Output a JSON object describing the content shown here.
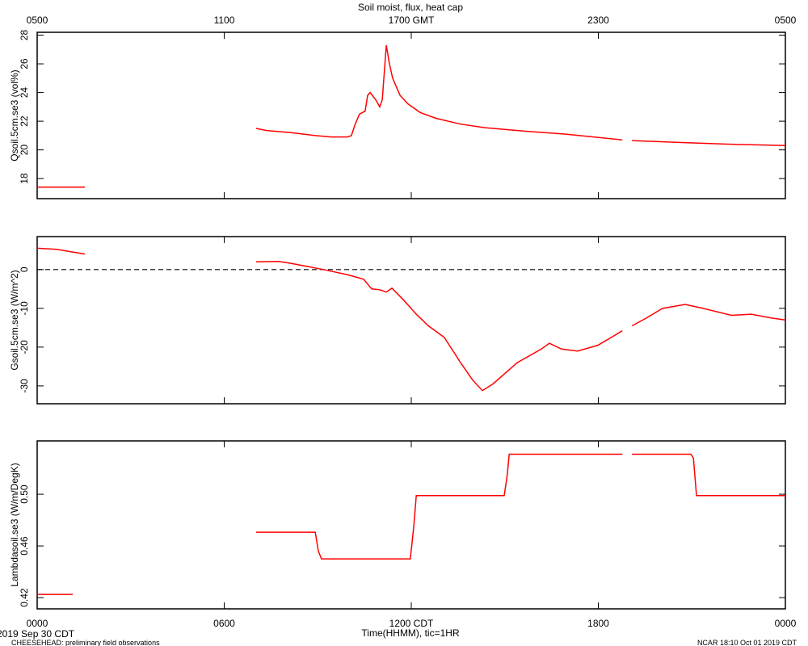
{
  "footer": {
    "date": "2019 Sep 30 CDT",
    "project": "CHEESEHEAD: preliminary field observations",
    "stamp": "NCAR 18:10 Oct 01 2019 CDT"
  },
  "chart_data": [
    {
      "type": "line",
      "title": "Soil moist, flux, heat cap",
      "ylabel": "Qsoil.5cm.se3 (vol%)",
      "xlim": [
        0,
        24
      ],
      "ylim": [
        16.6,
        28.2
      ],
      "yticks": [
        18,
        20,
        22,
        24,
        26,
        28
      ],
      "x2ticks": [
        {
          "value": 0,
          "label": "0500"
        },
        {
          "value": 6,
          "label": "1100"
        },
        {
          "value": 12,
          "label": "1700 GMT"
        },
        {
          "value": 18,
          "label": "2300"
        },
        {
          "value": 24,
          "label": "0500"
        }
      ],
      "x": [
        0,
        1.53,
        1.6,
        7.02,
        7.36,
        8.14,
        8.92,
        9.43,
        9.95,
        10.08,
        10.2,
        10.34,
        10.52,
        10.6,
        10.68,
        10.86,
        10.99,
        11.07,
        11.2,
        11.3,
        11.4,
        11.64,
        11.9,
        12.29,
        12.8,
        13.58,
        14.36,
        15.66,
        16.95,
        18.77,
        18.9,
        19.08,
        20.84,
        22.14,
        24
      ],
      "series": [
        {
          "color": "#ff0000",
          "values": [
            17.4,
            17.4,
            null,
            21.5,
            21.35,
            21.2,
            21.0,
            20.9,
            20.9,
            21.0,
            21.8,
            22.5,
            22.7,
            23.8,
            24.0,
            23.5,
            23.0,
            23.5,
            27.3,
            26.0,
            25.0,
            23.8,
            23.2,
            22.6,
            22.2,
            21.8,
            21.55,
            21.3,
            21.1,
            20.7,
            null,
            20.65,
            20.5,
            20.4,
            20.3
          ]
        }
      ]
    },
    {
      "type": "line",
      "ylabel": "Gsoil.5cm.se3 (W/m^2)",
      "hline": 0,
      "xlim": [
        0,
        24
      ],
      "ylim": [
        -34.6,
        8.5
      ],
      "yticks": [
        -30,
        -20,
        -10,
        0
      ],
      "x": [
        0,
        0.62,
        1.53,
        1.6,
        7.02,
        7.75,
        8.14,
        9.18,
        9.95,
        10.47,
        10.73,
        10.99,
        11.2,
        11.38,
        11.77,
        12.16,
        12.55,
        13.06,
        13.58,
        13.97,
        14.28,
        14.62,
        15.4,
        16.17,
        16.43,
        16.82,
        17.34,
        17.99,
        18.77,
        18.9,
        19.08,
        19.54,
        20.06,
        20.79,
        21.36,
        22.27,
        22.91,
        23.56,
        24
      ],
      "series": [
        {
          "color": "#ff0000",
          "values": [
            5.5,
            5.2,
            4.0,
            null,
            2.0,
            2.1,
            1.6,
            0.0,
            -1.3,
            -2.5,
            -5.0,
            -5.2,
            -5.8,
            -4.8,
            -8.0,
            -11.5,
            -14.5,
            -17.5,
            -24.0,
            -28.5,
            -31.2,
            -29.5,
            -24.0,
            -20.5,
            -19.0,
            -20.5,
            -21.0,
            -19.5,
            -15.8,
            null,
            -14.5,
            -12.5,
            -10.0,
            -9.0,
            -10.0,
            -11.8,
            -11.5,
            -12.5,
            -13.0
          ]
        }
      ]
    },
    {
      "type": "line",
      "ylabel": "Lambdasoil.se3 (W/m/DegK)",
      "xlabel": "Time(HHMM), tic=1HR",
      "xlim": [
        0,
        24
      ],
      "ylim": [
        0.4113,
        0.5413
      ],
      "yticks": [
        0.42,
        0.46,
        0.5
      ],
      "ytick_labels": [
        "0.42",
        "0.46",
        "0.50"
      ],
      "xticks": [
        {
          "value": 0,
          "label": "0000"
        },
        {
          "value": 6,
          "label": "0600"
        },
        {
          "value": 12,
          "label": "1200 CDT"
        },
        {
          "value": 18,
          "label": "1800"
        },
        {
          "value": 24,
          "label": "0000"
        }
      ],
      "x": [
        0,
        1.14,
        1.2,
        7.02,
        8.92,
        9.02,
        9.12,
        11.97,
        12.08,
        12.16,
        14.98,
        15.08,
        15.14,
        18.77,
        18.9,
        19.08,
        20.97,
        21.05,
        21.15,
        24
      ],
      "series": [
        {
          "color": "#ff0000",
          "values": [
            0.4225,
            0.4225,
            null,
            0.4706,
            0.4706,
            0.456,
            0.45,
            0.45,
            0.475,
            0.499,
            0.499,
            0.515,
            0.531,
            0.531,
            null,
            0.531,
            0.531,
            0.528,
            0.499,
            0.499
          ]
        }
      ]
    }
  ]
}
